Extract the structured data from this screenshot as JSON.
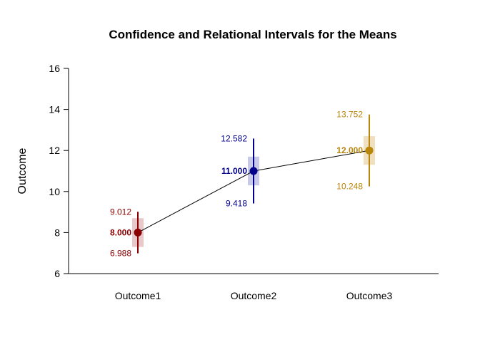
{
  "chart_data": {
    "type": "line",
    "title": "Confidence and Relational Intervals for the Means",
    "xlabel": "",
    "ylabel": "Outcome",
    "ylim": [
      6,
      16
    ],
    "yticks": [
      6,
      8,
      10,
      12,
      14,
      16
    ],
    "categories": [
      "Outcome1",
      "Outcome2",
      "Outcome3"
    ],
    "grid": false,
    "legend": "none",
    "points": [
      {
        "category": "Outcome1",
        "mean": 8.0,
        "ci_lower": 6.988,
        "ci_upper": 9.012,
        "ri_lower": 7.3,
        "ri_upper": 8.7,
        "mean_label": "8.000",
        "lower_label": "6.988",
        "upper_label": "9.012",
        "color": "#8B0000",
        "band_color": "#E8C8C8"
      },
      {
        "category": "Outcome2",
        "mean": 11.0,
        "ci_lower": 9.418,
        "ci_upper": 12.582,
        "ri_lower": 10.3,
        "ri_upper": 11.7,
        "mean_label": "11.000",
        "lower_label": "9.418",
        "upper_label": "12.582",
        "color": "#00008B",
        "band_color": "#C8C8E8"
      },
      {
        "category": "Outcome3",
        "mean": 12.0,
        "ci_lower": 10.248,
        "ci_upper": 13.752,
        "ri_lower": 11.3,
        "ri_upper": 12.7,
        "mean_label": "12.000",
        "lower_label": "10.248",
        "upper_label": "13.752",
        "color": "#B8860B",
        "band_color": "#F0E0C0"
      }
    ],
    "connect_line_color": "#000000"
  }
}
